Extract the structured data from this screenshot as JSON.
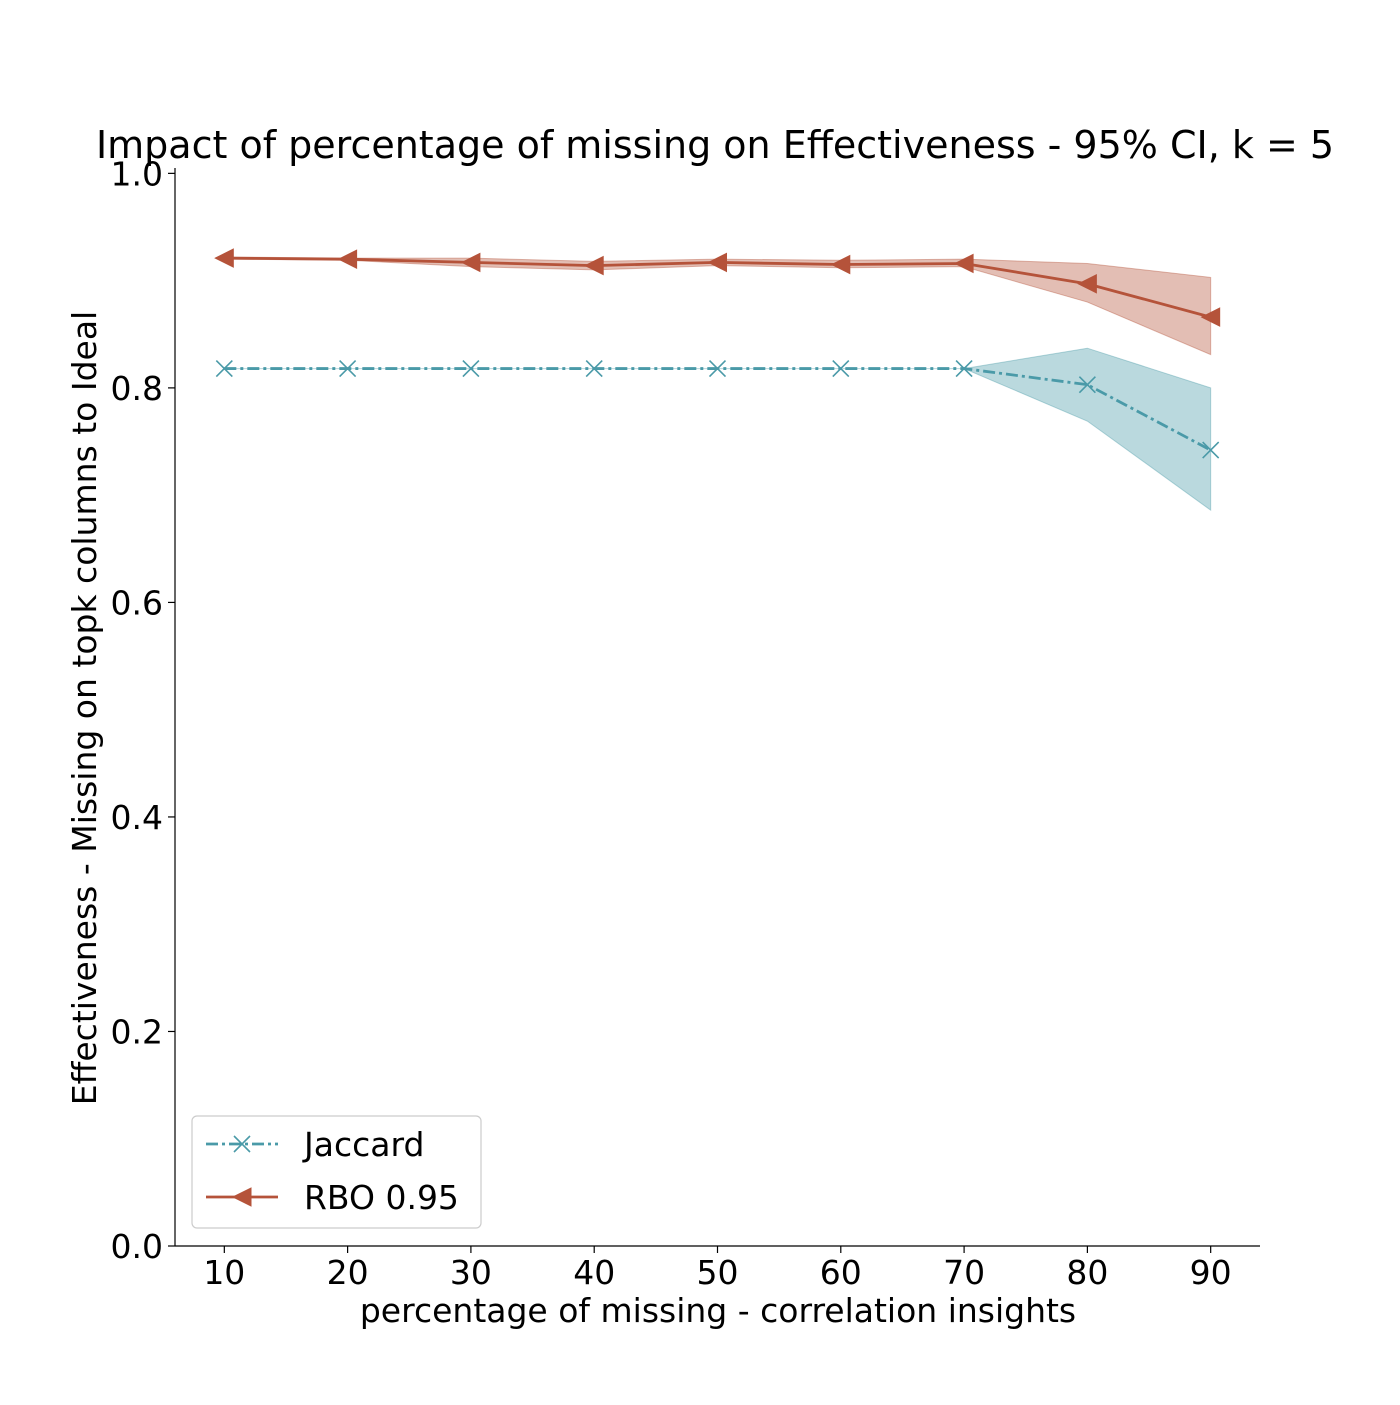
{
  "chart_data": {
    "type": "line",
    "title": "Impact of percentage of missing on Effectiveness - 95% CI, k = 5",
    "xlabel": "percentage of missing - correlation insights",
    "ylabel": "Effectiveness - Missing on topk columns to Ideal",
    "x": [
      10,
      20,
      30,
      40,
      50,
      60,
      70,
      80,
      90
    ],
    "xticks": [
      "10",
      "20",
      "30",
      "40",
      "50",
      "60",
      "70",
      "80",
      "90"
    ],
    "yticks": [
      "0.0",
      "0.2",
      "0.4",
      "0.6",
      "0.8",
      "1.0"
    ],
    "xlim": [
      6,
      94
    ],
    "ylim": [
      0.0,
      1.005
    ],
    "grid": false,
    "legend_position": "lower-left",
    "series": [
      {
        "name": "Jaccard",
        "color": "#4a9aa8",
        "line_style": "dash-dot",
        "marker": "x",
        "values": [
          0.818,
          0.818,
          0.818,
          0.818,
          0.818,
          0.818,
          0.818,
          0.803,
          0.742
        ],
        "ci_low": [
          0.818,
          0.818,
          0.818,
          0.818,
          0.818,
          0.818,
          0.818,
          0.769,
          0.686
        ],
        "ci_high": [
          0.818,
          0.818,
          0.818,
          0.818,
          0.818,
          0.818,
          0.818,
          0.837,
          0.8
        ]
      },
      {
        "name": "RBO 0.95",
        "color": "#b5533a",
        "line_style": "solid",
        "marker": "triangle-left",
        "values": [
          0.921,
          0.92,
          0.917,
          0.914,
          0.917,
          0.915,
          0.916,
          0.897,
          0.866
        ],
        "ci_low": [
          0.92,
          0.919,
          0.913,
          0.91,
          0.914,
          0.912,
          0.913,
          0.88,
          0.831
        ],
        "ci_high": [
          0.922,
          0.921,
          0.921,
          0.918,
          0.92,
          0.919,
          0.92,
          0.916,
          0.903
        ]
      }
    ]
  }
}
